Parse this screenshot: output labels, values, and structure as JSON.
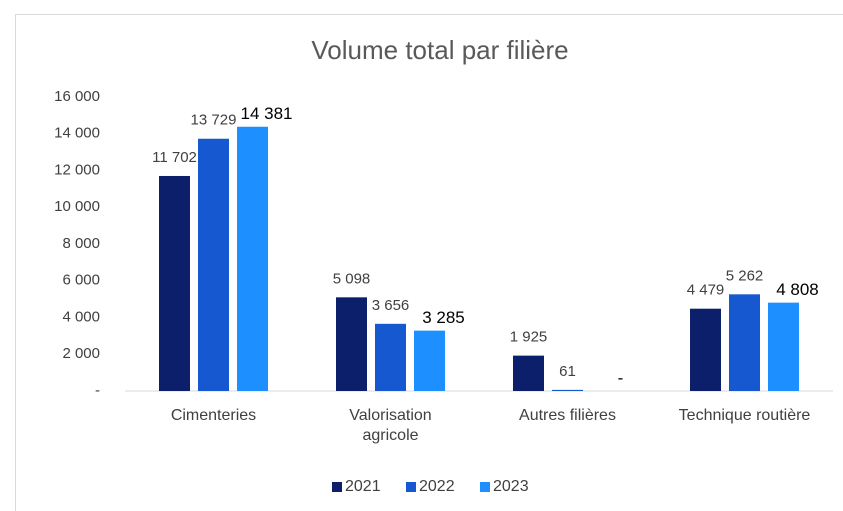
{
  "chart_data": {
    "type": "bar",
    "title": "Volume total par filière",
    "categories": [
      "Cimenteries",
      "Valorisation agricole",
      "Autres filières",
      "Technique routière"
    ],
    "series": [
      {
        "name": "2021",
        "color": "#0b1f6b",
        "values": [
          11702,
          5098,
          1925,
          4479
        ],
        "value_labels": [
          "11 702",
          "5 098",
          "1 925",
          "4 479"
        ]
      },
      {
        "name": "2022",
        "color": "#1558cf",
        "values": [
          13729,
          3656,
          61,
          5262
        ],
        "value_labels": [
          "13 729",
          "3 656",
          "61",
          "5 262"
        ]
      },
      {
        "name": "2023",
        "color": "#1e8fff",
        "values": [
          14381,
          3285,
          0,
          4808
        ],
        "value_labels": [
          "14 381",
          "3 285",
          "-",
          "4 808"
        ]
      }
    ],
    "ylim": [
      0,
      16000
    ],
    "yticks": [
      {
        "value": 0,
        "label": "-"
      },
      {
        "value": 2000,
        "label": "2 000"
      },
      {
        "value": 4000,
        "label": "4 000"
      },
      {
        "value": 6000,
        "label": "6 000"
      },
      {
        "value": 8000,
        "label": "8 000"
      },
      {
        "value": 10000,
        "label": "10 000"
      },
      {
        "value": 12000,
        "label": "12 000"
      },
      {
        "value": 14000,
        "label": "14 000"
      },
      {
        "value": 16000,
        "label": "16 000"
      }
    ],
    "grid": false,
    "legend": "bottom"
  }
}
